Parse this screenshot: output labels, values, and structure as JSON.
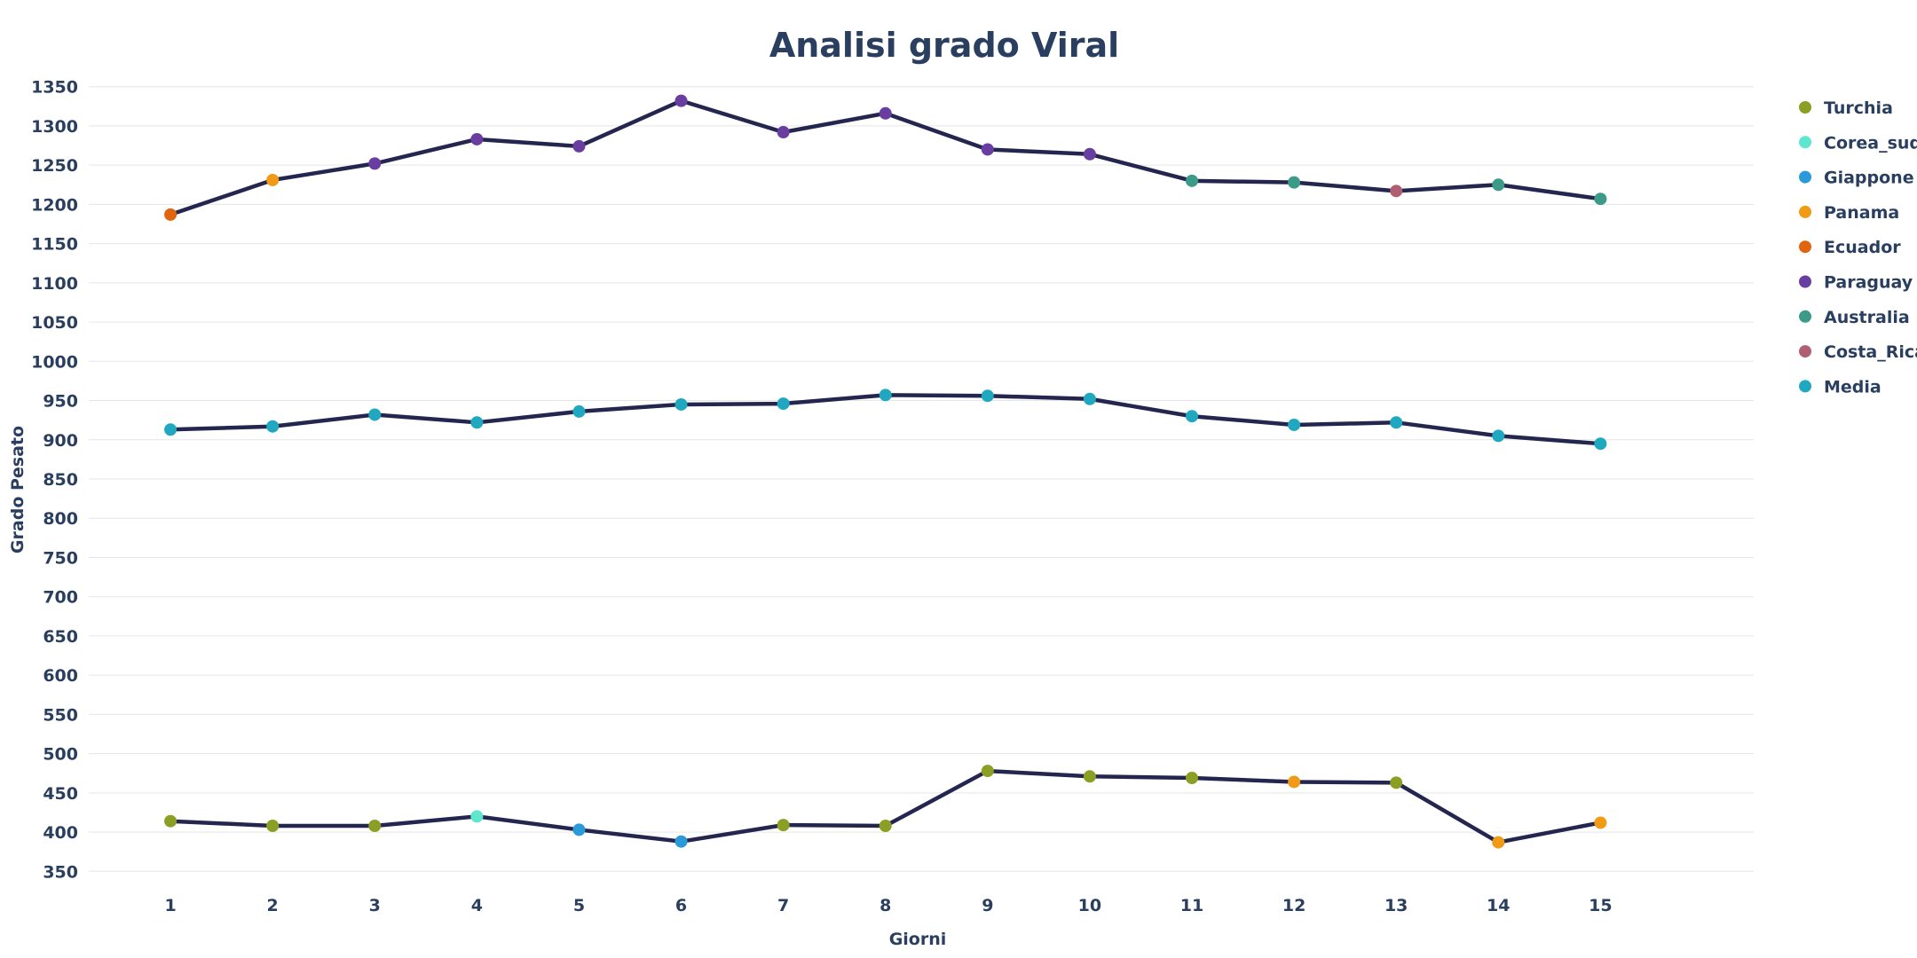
{
  "chart_data": {
    "type": "line",
    "title": "Analisi grado Viral",
    "xlabel": "Giorni",
    "ylabel": "Grado Pesato",
    "x": [
      1,
      2,
      3,
      4,
      5,
      6,
      7,
      8,
      9,
      10,
      11,
      12,
      13,
      14,
      15
    ],
    "ylim": [
      330,
      1370
    ],
    "yticks": [
      350,
      400,
      450,
      500,
      550,
      600,
      650,
      700,
      750,
      800,
      850,
      900,
      950,
      1000,
      1050,
      1100,
      1150,
      1200,
      1250,
      1300,
      1350
    ],
    "grid": true,
    "legend_position": "right",
    "line_color": "#24264f",
    "legend": [
      {
        "name": "Turchia",
        "color": "#8b9f24"
      },
      {
        "name": "Corea_sud",
        "color": "#5ee6cf"
      },
      {
        "name": "Giappone",
        "color": "#2a9ad8"
      },
      {
        "name": "Panama",
        "color": "#f09a15"
      },
      {
        "name": "Ecuador",
        "color": "#e0650e"
      },
      {
        "name": "Paraguay",
        "color": "#6a3ea1"
      },
      {
        "name": "Australia",
        "color": "#3c9a88"
      },
      {
        "name": "Costa_Rica",
        "color": "#b05f72"
      },
      {
        "name": "Media",
        "color": "#1fa8bf"
      }
    ],
    "series": [
      {
        "values": [
          1187,
          1231,
          1252,
          1283,
          1274,
          1332,
          1292,
          1316,
          1270,
          1264,
          1230,
          1228,
          1217,
          1225,
          1207
        ],
        "point_categories": [
          "Ecuador",
          "Panama",
          "Paraguay",
          "Paraguay",
          "Paraguay",
          "Paraguay",
          "Paraguay",
          "Paraguay",
          "Paraguay",
          "Paraguay",
          "Australia",
          "Australia",
          "Costa_Rica",
          "Australia",
          "Australia"
        ]
      },
      {
        "values": [
          913,
          917,
          932,
          922,
          936,
          945,
          946,
          957,
          956,
          952,
          930,
          919,
          922,
          905,
          895
        ],
        "point_categories": [
          "Media",
          "Media",
          "Media",
          "Media",
          "Media",
          "Media",
          "Media",
          "Media",
          "Media",
          "Media",
          "Media",
          "Media",
          "Media",
          "Media",
          "Media"
        ]
      },
      {
        "values": [
          414,
          408,
          408,
          420,
          403,
          388,
          409,
          408,
          478,
          471,
          469,
          464,
          463,
          387,
          412
        ],
        "point_categories": [
          "Turchia",
          "Turchia",
          "Turchia",
          "Corea_sud",
          "Giappone",
          "Giappone",
          "Turchia",
          "Turchia",
          "Turchia",
          "Turchia",
          "Turchia",
          "Panama",
          "Turchia",
          "Panama",
          "Panama"
        ]
      }
    ]
  }
}
